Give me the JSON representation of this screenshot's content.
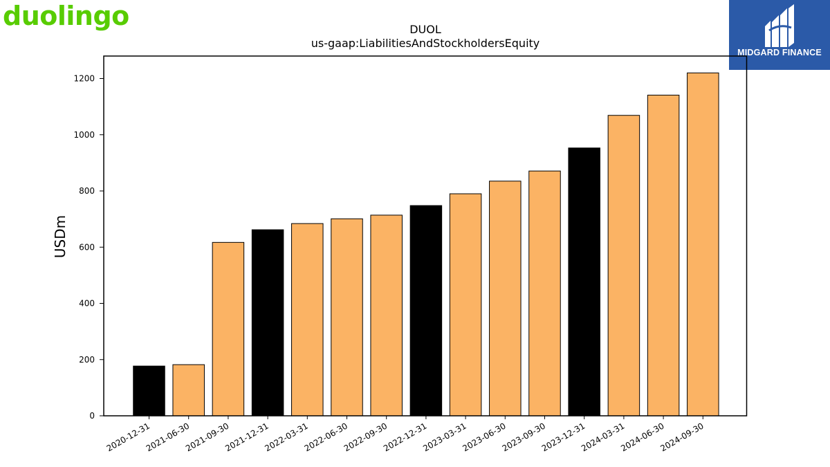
{
  "brand": {
    "name": "duolingo",
    "color": "#58cc02"
  },
  "publisher": {
    "name": "MIDGARD FINANCE",
    "bg_color": "#2b5aa8"
  },
  "chart_data": {
    "type": "bar",
    "title": "DUOL",
    "subtitle": "us-gaap:LiabilitiesAndStockholdersEquity",
    "xlabel": "",
    "ylabel": "USDm",
    "ylim": [
      0,
      1280
    ],
    "yticks": [
      0,
      200,
      400,
      600,
      800,
      1000,
      1200
    ],
    "grid": false,
    "categories": [
      "2020-12-31",
      "2021-06-30",
      "2021-09-30",
      "2021-12-31",
      "2022-03-31",
      "2022-06-30",
      "2022-09-30",
      "2022-12-31",
      "2023-03-31",
      "2023-06-30",
      "2023-09-30",
      "2023-12-31",
      "2024-03-31",
      "2024-06-30",
      "2024-09-30"
    ],
    "values": [
      177,
      182,
      617,
      662,
      684,
      701,
      714,
      748,
      790,
      835,
      871,
      953,
      1069,
      1141,
      1220
    ],
    "bar_colors": [
      "#000000",
      "#fbb364",
      "#fbb364",
      "#000000",
      "#fbb364",
      "#fbb364",
      "#fbb364",
      "#000000",
      "#fbb364",
      "#fbb364",
      "#fbb364",
      "#000000",
      "#fbb364",
      "#fbb364",
      "#fbb364"
    ]
  }
}
